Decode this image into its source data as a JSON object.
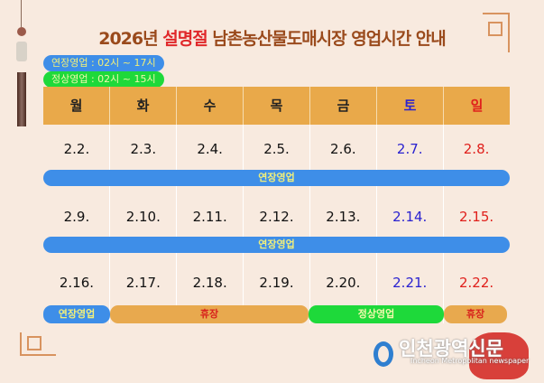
{
  "title": {
    "year": "2026년",
    "holiday": "설명절",
    "rest": "남촌농산물도매시장 영업시간 안내"
  },
  "legend": [
    {
      "label": "연장영업 : 02시 ~ 17시",
      "color": "#3e8ee8"
    },
    {
      "label": "정상영업 : 02시 ~ 15시",
      "color": "#1ed93a"
    }
  ],
  "days": [
    "월",
    "화",
    "수",
    "목",
    "금",
    "토",
    "일"
  ],
  "weeks": [
    {
      "dates": [
        "2.2.",
        "2.3.",
        "2.4.",
        "2.5.",
        "2.6.",
        "2.7.",
        "2.8."
      ],
      "bar": "연장영업"
    },
    {
      "dates": [
        "2.9.",
        "2.10.",
        "2.11.",
        "2.12.",
        "2.13.",
        "2.14.",
        "2.15."
      ],
      "bar": "연장영업"
    },
    {
      "dates": [
        "2.16.",
        "2.17.",
        "2.18.",
        "2.19.",
        "2.20.",
        "2.21.",
        "2.22."
      ]
    }
  ],
  "last_bars": [
    "연장영업",
    "휴장",
    "정상영업",
    "휴장"
  ],
  "colors": {
    "extended": "#3e8ee8",
    "normal": "#1ed93a",
    "closed": "#e8a94e",
    "saturday": "#2a22d0",
    "sunday": "#e0201c"
  },
  "logo": {
    "name": "인천광역신문",
    "sub": "Incheon Metropolitan newspaper"
  }
}
